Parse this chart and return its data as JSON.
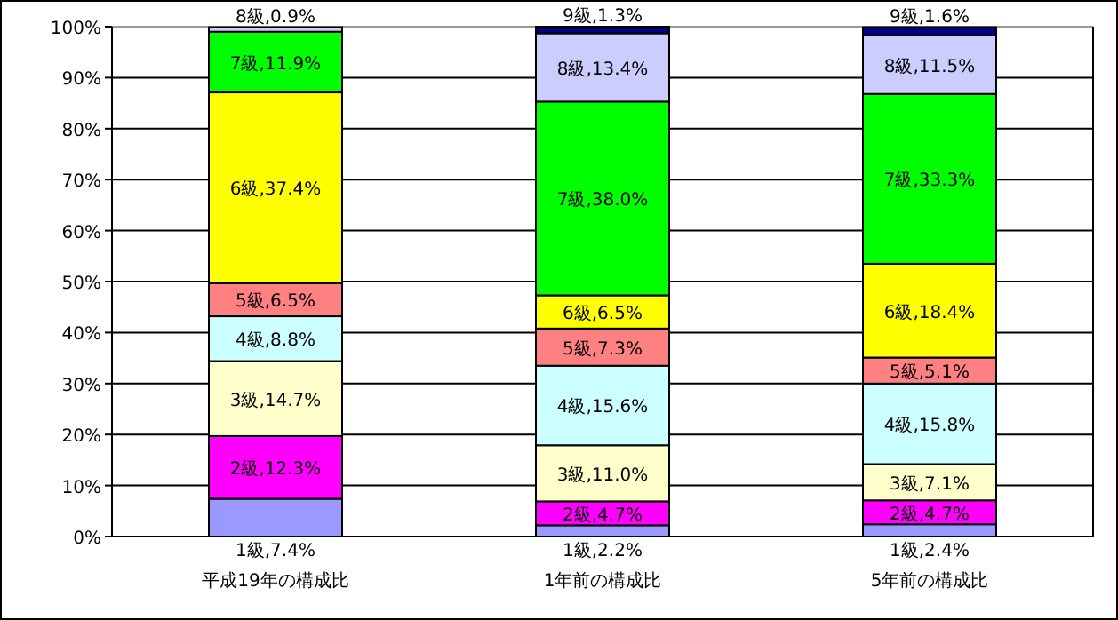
{
  "chart_data": {
    "type": "bar",
    "stacked": true,
    "categories": [
      "平成19年の構成比",
      "1年前の構成比",
      "5年前の構成比"
    ],
    "ylim": [
      0,
      100
    ],
    "yticks": [
      {
        "value": 0,
        "label": "0%"
      },
      {
        "value": 10,
        "label": "10%"
      },
      {
        "value": 20,
        "label": "20%"
      },
      {
        "value": 30,
        "label": "30%"
      },
      {
        "value": 40,
        "label": "40%"
      },
      {
        "value": 50,
        "label": "50%"
      },
      {
        "value": 60,
        "label": "60%"
      },
      {
        "value": 70,
        "label": "70%"
      },
      {
        "value": 80,
        "label": "80%"
      },
      {
        "value": 90,
        "label": "90%"
      },
      {
        "value": 100,
        "label": "100%"
      }
    ],
    "grid": "y",
    "series": [
      {
        "color": "#9999ff",
        "values": [
          7.4,
          2.2,
          2.4
        ],
        "value_labels": [
          "1級,7.4%",
          "1級,2.2%",
          "1級,2.4%"
        ]
      },
      {
        "color": "#ff00ff",
        "values": [
          12.3,
          4.7,
          4.7
        ],
        "value_labels": [
          "2級,12.3%",
          "2級,4.7%",
          "2級,4.7%"
        ]
      },
      {
        "color": "#ffffcc",
        "values": [
          14.7,
          11.0,
          7.1
        ],
        "value_labels": [
          "3級,14.7%",
          "3級,11.0%",
          "3級,7.1%"
        ]
      },
      {
        "color": "#ccffff",
        "values": [
          8.8,
          15.6,
          15.8
        ],
        "value_labels": [
          "4級,8.8%",
          "4級,15.6%",
          "4級,15.8%"
        ]
      },
      {
        "color": "#ff8080",
        "values": [
          6.5,
          7.3,
          5.1
        ],
        "value_labels": [
          "5級,6.5%",
          "5級,7.3%",
          "5級,5.1%"
        ]
      },
      {
        "color": "#ffff00",
        "values": [
          37.4,
          6.5,
          18.4
        ],
        "value_labels": [
          "6級,37.4%",
          "6級,6.5%",
          "6級,18.4%"
        ]
      },
      {
        "color": "#00ff00",
        "values": [
          11.9,
          38.0,
          33.3
        ],
        "value_labels": [
          "7級,11.9%",
          "7級,38.0%",
          "7級,33.3%"
        ]
      },
      {
        "color": "#ccccff",
        "values": [
          0.9,
          13.4,
          11.5
        ],
        "value_labels": [
          "8級,0.9%",
          "8級,13.4%",
          "8級,11.5%"
        ]
      },
      {
        "color": "#000080",
        "values": [
          null,
          1.3,
          1.6
        ],
        "value_labels": [
          null,
          "9級,1.3%",
          "9級,1.6%"
        ]
      }
    ]
  }
}
